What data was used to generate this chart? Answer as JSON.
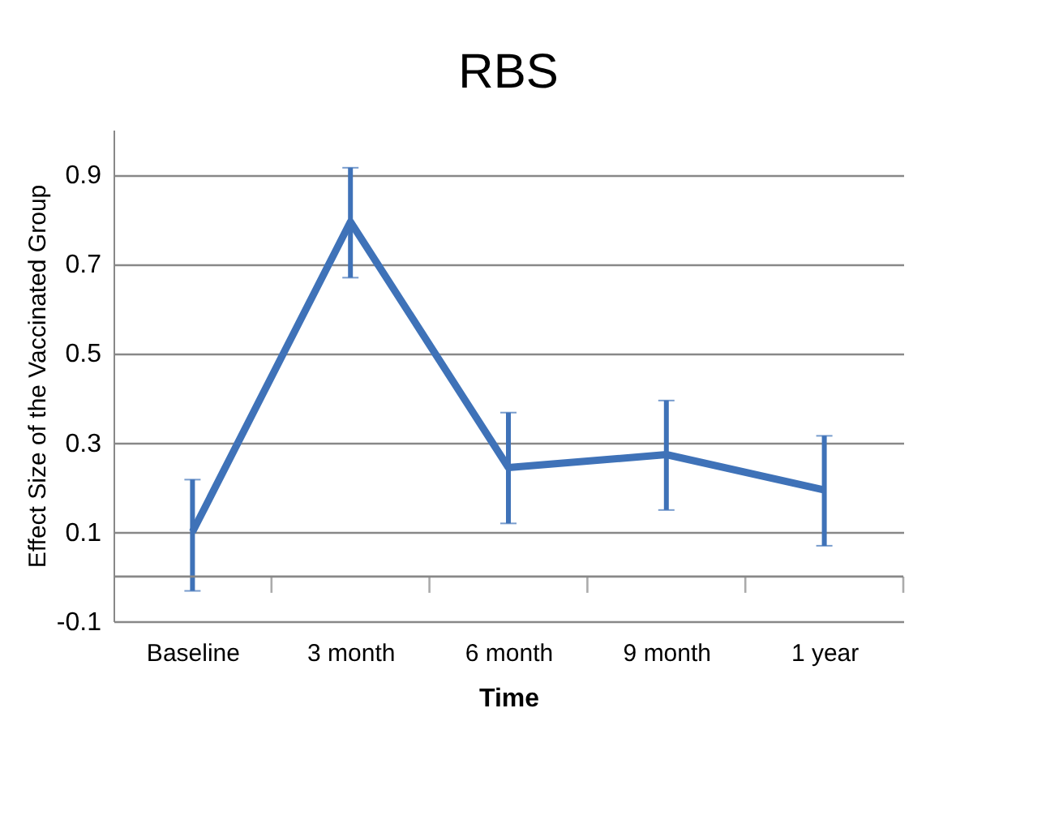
{
  "chart_data": {
    "type": "line",
    "title": "RBS",
    "xlabel": "Time",
    "ylabel": "Effect  Size of the Vaccinated Group",
    "categories": [
      "Baseline",
      "3 month",
      "6 month",
      "9 month",
      "1 year"
    ],
    "series": [
      {
        "color": "#3f72b8",
        "values": [
          0.1,
          0.794,
          0.244,
          0.273,
          0.194
        ],
        "errors": [
          [
            -0.032,
            0.217
          ],
          [
            0.669,
            0.915
          ],
          [
            0.119,
            0.367
          ],
          [
            0.149,
            0.394
          ],
          [
            0.069,
            0.315
          ]
        ]
      }
    ],
    "ylim": [
      -0.1,
      1.0
    ],
    "yticks": [
      -0.1,
      0.1,
      0.3,
      0.5,
      0.7,
      0.9
    ],
    "grid": "y",
    "ref_lines": [
      {
        "axis": "y",
        "value": 0,
        "color": "#888888"
      }
    ]
  }
}
